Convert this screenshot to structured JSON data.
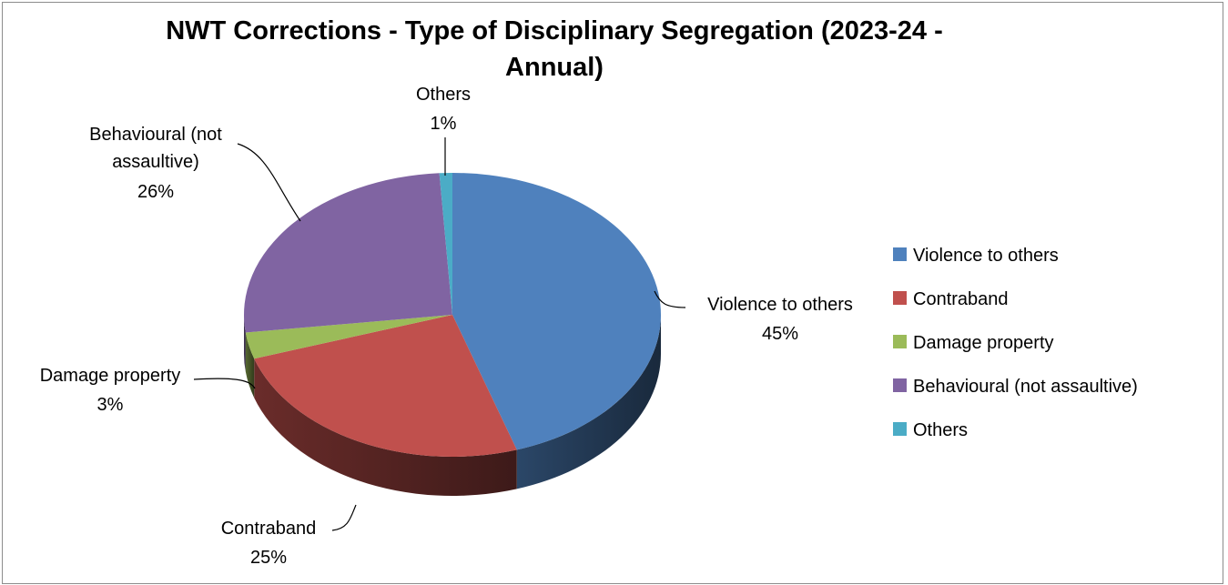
{
  "chart_data": {
    "type": "pie",
    "style": "3d",
    "title_lines": [
      "NWT Corrections - Type of Disciplinary Segregation (2023-24 -",
      "Annual)"
    ],
    "slices": [
      {
        "name": "Violence to others",
        "label_lines": [
          "Violence to others"
        ],
        "percent_label": "45%",
        "value": 45,
        "color": "#4F81BD"
      },
      {
        "name": "Contraband",
        "label_lines": [
          "Contraband"
        ],
        "percent_label": "25%",
        "value": 25,
        "color": "#C0504D"
      },
      {
        "name": "Damage property",
        "label_lines": [
          "Damage property"
        ],
        "percent_label": "3%",
        "value": 3,
        "color": "#9BBB59"
      },
      {
        "name": "Behavioural (not assaultive)",
        "label_lines": [
          "Behavioural (not",
          "assaultive)"
        ],
        "percent_label": "26%",
        "value": 26,
        "color": "#8064A2"
      },
      {
        "name": "Others",
        "label_lines": [
          "Others"
        ],
        "percent_label": "1%",
        "value": 1,
        "color": "#4BACC6"
      }
    ],
    "legend": {
      "position": "right",
      "entries": [
        "Violence to others",
        "Contraband",
        "Damage property",
        "Behavioural (not assaultive)",
        "Others"
      ]
    }
  }
}
